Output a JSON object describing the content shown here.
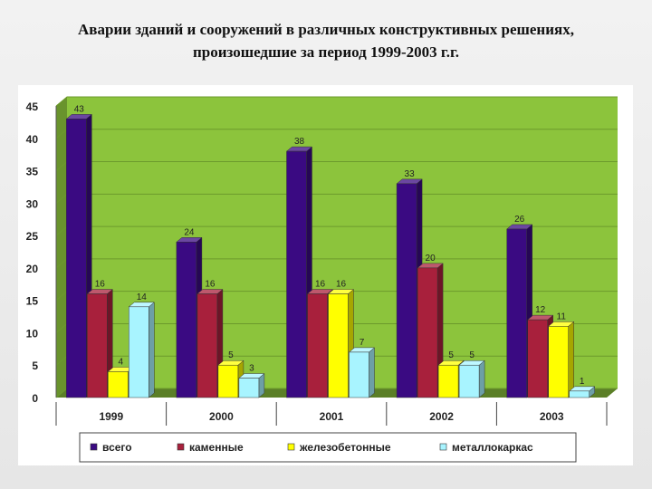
{
  "slide": {
    "title_line1": "Аварии зданий и сооружений в различных конструктивных решениях,",
    "title_line2": "произошедшие за период 1999-2003 г.г."
  },
  "chart_data": {
    "type": "bar",
    "title": "",
    "xlabel": "",
    "ylabel": "",
    "categories": [
      "1999",
      "2000",
      "2001",
      "2002",
      "2003"
    ],
    "series": [
      {
        "name": "всего",
        "values": [
          43,
          24,
          38,
          33,
          26
        ],
        "color": "#3a0a82"
      },
      {
        "name": "каменные",
        "values": [
          16,
          16,
          16,
          20,
          12
        ],
        "color": "#a8203c"
      },
      {
        "name": "железобетонные",
        "values": [
          4,
          5,
          16,
          5,
          11
        ],
        "color": "#ffff00"
      },
      {
        "name": "металлокаркас",
        "values": [
          14,
          3,
          7,
          5,
          1
        ],
        "color": "#a8f4ff"
      }
    ],
    "ylim": [
      0,
      45
    ],
    "yticks": [
      "0",
      "5",
      "10",
      "15",
      "20",
      "25",
      "30",
      "35",
      "40",
      "45"
    ],
    "data_labels": true,
    "grid": true,
    "legend_position": "bottom",
    "plot_background": "#8cc43c"
  }
}
